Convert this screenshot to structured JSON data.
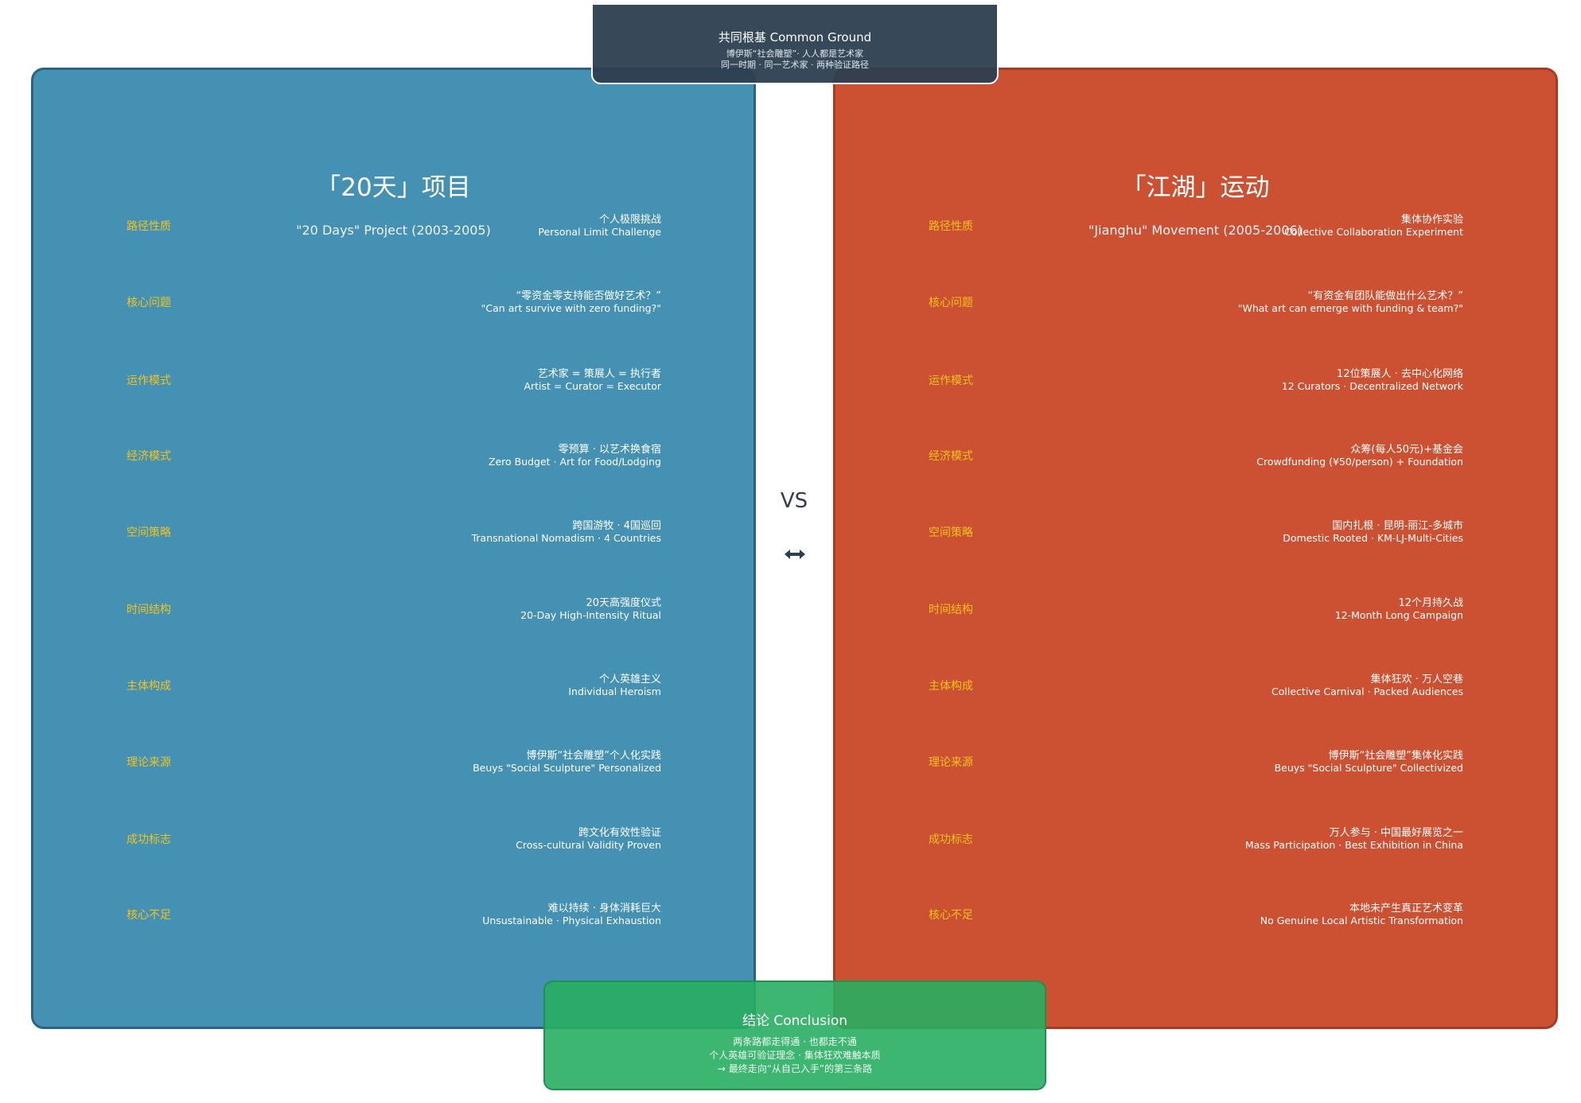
{
  "top": {
    "title": "共同根基 Common Ground",
    "lines": [
      "博伊斯“社会雕塑”· 人人都是艺术家",
      "同一时期 · 同一艺术家 · 两种验证路径"
    ]
  },
  "panels": [
    {
      "title": "「20天」项目",
      "subtitle": "\"20 Days\" Project (2003-2005)",
      "rows": [
        {
          "label": "路径性质",
          "zh": "个人极限挑战",
          "en": "Personal Limit Challenge"
        },
        {
          "label": "核心问题",
          "zh": "“零资金零支持能否做好艺术？”",
          "en": "\"Can art survive with zero funding?\""
        },
        {
          "label": "运作模式",
          "zh": "艺术家 = 策展人 = 执行者",
          "en": "Artist = Curator = Executor"
        },
        {
          "label": "经济模式",
          "zh": "零预算 · 以艺术换食宿",
          "en": "Zero Budget · Art for Food/Lodging"
        },
        {
          "label": "空间策略",
          "zh": "跨国游牧 · 4国巡回",
          "en": "Transnational Nomadism · 4 Countries"
        },
        {
          "label": "时间结构",
          "zh": "20天高强度仪式",
          "en": "20-Day High-Intensity Ritual"
        },
        {
          "label": "主体构成",
          "zh": "个人英雄主义",
          "en": "Individual Heroism"
        },
        {
          "label": "理论来源",
          "zh": "博伊斯“社会雕塑”个人化实践",
          "en": "Beuys \"Social Sculpture\" Personalized"
        },
        {
          "label": "成功标志",
          "zh": "跨文化有效性验证",
          "en": "Cross-cultural Validity Proven"
        },
        {
          "label": "核心不足",
          "zh": "难以持续 · 身体消耗巨大",
          "en": "Unsustainable · Physical Exhaustion"
        }
      ]
    },
    {
      "title": "「江湖」运动",
      "subtitle": "\"Jianghu\" Movement (2005-2006)",
      "rows": [
        {
          "label": "路径性质",
          "zh": "集体协作实验",
          "en": "Collective Collaboration Experiment"
        },
        {
          "label": "核心问题",
          "zh": "“有资金有团队能做出什么艺术？”",
          "en": "\"What art can emerge with funding & team?\""
        },
        {
          "label": "运作模式",
          "zh": "12位策展人 · 去中心化网络",
          "en": "12 Curators · Decentralized Network"
        },
        {
          "label": "经济模式",
          "zh": "众筹(每人50元)+基金会",
          "en": "Crowdfunding (¥50/person) + Foundation"
        },
        {
          "label": "空间策略",
          "zh": "国内扎根 · 昆明-丽江-多城市",
          "en": "Domestic Rooted · KM-LJ-Multi-Cities"
        },
        {
          "label": "时间结构",
          "zh": "12个月持久战",
          "en": "12-Month Long Campaign"
        },
        {
          "label": "主体构成",
          "zh": "集体狂欢 · 万人空巷",
          "en": "Collective Carnival · Packed Audiences"
        },
        {
          "label": "理论来源",
          "zh": "博伊斯“社会雕塑”集体化实践",
          "en": "Beuys \"Social Sculpture\" Collectivized"
        },
        {
          "label": "成功标志",
          "zh": "万人参与 · 中国最好展览之一",
          "en": "Mass Participation · Best Exhibition in China"
        },
        {
          "label": "核心不足",
          "zh": "本地未产生真正艺术变革",
          "en": "No Genuine Local Artistic Transformation"
        }
      ]
    }
  ],
  "center": "VS",
  "conclusion": {
    "title": "结论 Conclusion",
    "lines": [
      "两条路都走得通 · 也都走不通",
      "个人英雄可验证理念 · 集体狂欢难触本质",
      "→ 最终走向“从自己入手”的第三条路"
    ]
  }
}
